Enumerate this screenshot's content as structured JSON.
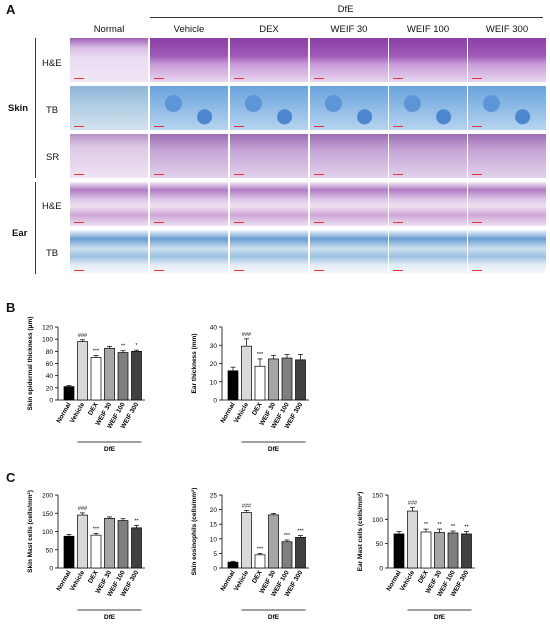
{
  "panel_a": {
    "letter": "A",
    "group_label": "DfE",
    "columns": [
      "Normal",
      "Vehicle",
      "DEX",
      "WEIF 30",
      "WEIF 100",
      "WEIF 300"
    ],
    "skin_label": "Skin",
    "ear_label": "Ear",
    "skin_rows": [
      "H&E",
      "TB",
      "SR"
    ],
    "ear_rows": [
      "H&E",
      "TB"
    ]
  },
  "panel_b": {
    "letter": "B"
  },
  "panel_c": {
    "letter": "C"
  },
  "group_categories": [
    "Normal",
    "Vehicle",
    "DEX",
    "WEIF 30",
    "WEIF 100",
    "WEIF 300"
  ],
  "group_bracket_label": "DfE",
  "colors": {
    "Normal": "#000000",
    "Vehicle": "#d9d9d9",
    "DEX": "#ffffff",
    "WEIF 30": "#a6a6a6",
    "WEIF 100": "#7f7f7f",
    "WEIF 300": "#404040"
  },
  "chart_data": [
    {
      "type": "bar",
      "ylabel": "Skin epidermal thickness (μm)",
      "ylim": [
        0,
        120
      ],
      "yticks": [
        "0",
        "20",
        "40",
        "60",
        "80",
        "100",
        "120"
      ],
      "categories": [
        "Normal",
        "Vehicle",
        "DEX",
        "WEIF 30",
        "WEIF 100",
        "WEIF 300"
      ],
      "values": [
        22,
        96,
        70,
        85,
        78,
        80
      ],
      "errors": [
        2,
        3,
        3,
        3,
        3,
        2
      ],
      "annotations": [
        "",
        "###",
        "***",
        "",
        "**",
        "*"
      ]
    },
    {
      "type": "bar",
      "ylabel": "Ear thickness (mm)",
      "ylim": [
        0,
        40
      ],
      "yticks": [
        "0",
        "10",
        "20",
        "30",
        "40"
      ],
      "categories": [
        "Normal",
        "Vehicle",
        "DEX",
        "WEIF 30",
        "WEIF 100",
        "WEIF 300"
      ],
      "values": [
        16,
        29.5,
        18.5,
        22.5,
        23,
        22
      ],
      "errors": [
        2,
        4,
        4,
        2,
        2,
        3
      ],
      "annotations": [
        "",
        "###",
        "***",
        "",
        "",
        ""
      ]
    },
    {
      "type": "bar",
      "ylabel": "Skin Mast cells (cells/mm²)",
      "ylim": [
        0,
        200
      ],
      "yticks": [
        "0",
        "50",
        "100",
        "150",
        "200"
      ],
      "categories": [
        "Normal",
        "Vehicle",
        "DEX",
        "WEIF 30",
        "WEIF 100",
        "WEIF 300"
      ],
      "values": [
        87,
        145,
        90,
        136,
        130,
        110
      ],
      "errors": [
        5,
        6,
        5,
        4,
        5,
        7
      ],
      "annotations": [
        "",
        "###",
        "***",
        "",
        "",
        "**"
      ]
    },
    {
      "type": "bar",
      "ylabel": "Skin eosinophils (cells/mm²)",
      "ylim": [
        0,
        25
      ],
      "yticks": [
        "0",
        "5",
        "10",
        "15",
        "20",
        "25"
      ],
      "categories": [
        "Normal",
        "Vehicle",
        "DEX",
        "WEIF 30",
        "WEIF 100",
        "WEIF 300"
      ],
      "values": [
        2,
        19,
        4.5,
        18.2,
        9,
        10.5
      ],
      "errors": [
        0.3,
        0.7,
        0.5,
        0.5,
        0.6,
        0.6
      ],
      "annotations": [
        "",
        "###",
        "***",
        "",
        "***",
        "***"
      ]
    },
    {
      "type": "bar",
      "ylabel": "Ear Mast cells (cells/mm²)",
      "ylim": [
        0,
        150
      ],
      "yticks": [
        "0",
        "50",
        "100",
        "150"
      ],
      "categories": [
        "Normal",
        "Vehicle",
        "DEX",
        "WEIF 30",
        "WEIF 100",
        "WEIF 300"
      ],
      "values": [
        70,
        117,
        74,
        73,
        72,
        70
      ],
      "errors": [
        5,
        7,
        6,
        7,
        4,
        5
      ],
      "annotations": [
        "",
        "###",
        "**",
        "**",
        "**",
        "**"
      ]
    }
  ]
}
